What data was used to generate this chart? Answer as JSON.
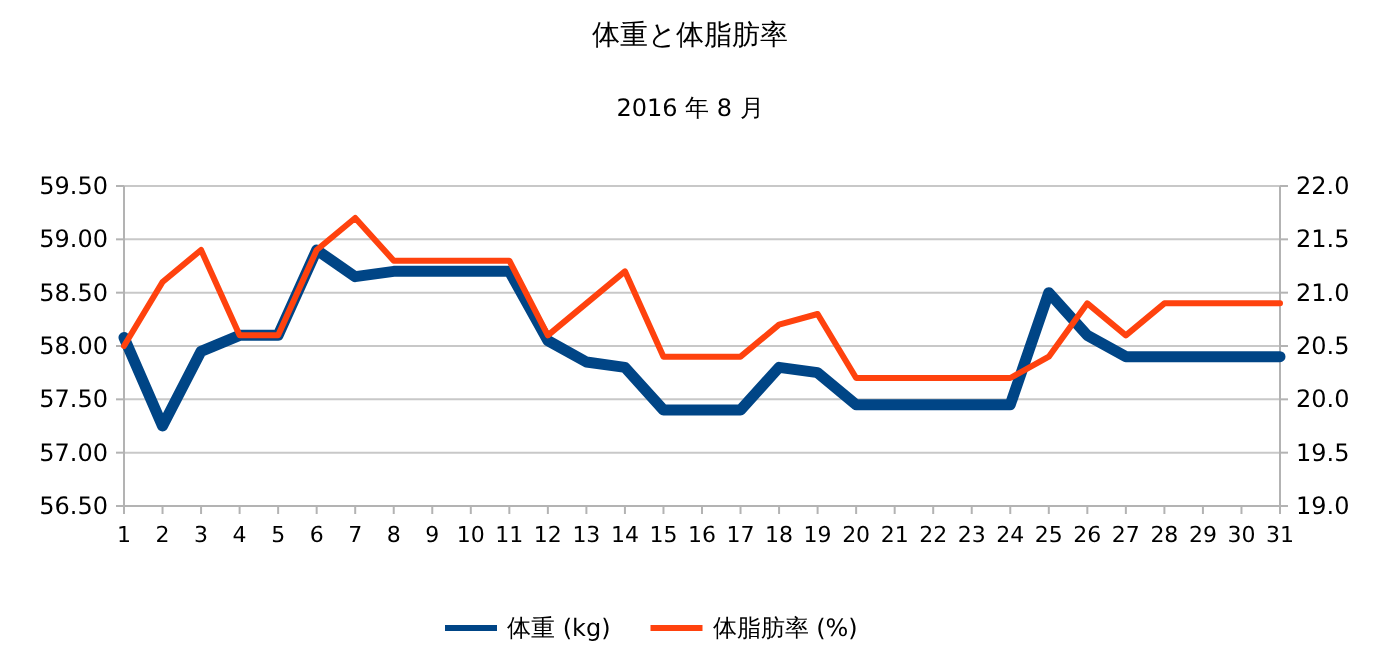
{
  "chart_data": {
    "type": "line",
    "title": "体重と体脂肪率",
    "subtitle": "2016 年 8 月",
    "x": [
      1,
      2,
      3,
      4,
      5,
      6,
      7,
      8,
      9,
      10,
      11,
      12,
      13,
      14,
      15,
      16,
      17,
      18,
      19,
      20,
      21,
      22,
      23,
      24,
      25,
      26,
      27,
      28,
      29,
      30,
      31
    ],
    "xlim": [
      1,
      31
    ],
    "xticks": [
      1,
      2,
      3,
      4,
      5,
      6,
      7,
      8,
      9,
      10,
      11,
      12,
      13,
      14,
      15,
      16,
      17,
      18,
      19,
      20,
      21,
      22,
      23,
      24,
      25,
      26,
      27,
      28,
      29,
      30,
      31
    ],
    "ylim": [
      56.5,
      59.5
    ],
    "yticks": [
      {
        "value": 56.5,
        "label": "56.50"
      },
      {
        "value": 57,
        "label": "57.00"
      },
      {
        "value": 57.5,
        "label": "57.50"
      },
      {
        "value": 58,
        "label": "58.00"
      },
      {
        "value": 58.5,
        "label": "58.50"
      },
      {
        "value": 59,
        "label": "59.00"
      },
      {
        "value": 59.5,
        "label": "59.50"
      }
    ],
    "y2lim": [
      19,
      22
    ],
    "y2ticks": [
      {
        "value": 19,
        "label": "19.0"
      },
      {
        "value": 19.5,
        "label": "19.5"
      },
      {
        "value": 20,
        "label": "20.0"
      },
      {
        "value": 20.5,
        "label": "20.5"
      },
      {
        "value": 21,
        "label": "21.0"
      },
      {
        "value": 21.5,
        "label": "21.5"
      },
      {
        "value": 22,
        "label": "22.0"
      }
    ],
    "series": [
      {
        "name": "体重 (kg)",
        "color": "#004586",
        "values": [
          58.08,
          57.25,
          57.95,
          58.1,
          58.1,
          58.9,
          58.65,
          58.7,
          58.7,
          58.7,
          58.7,
          58.05,
          57.85,
          57.8,
          57.4,
          57.4,
          57.4,
          57.8,
          57.75,
          57.45,
          57.45,
          57.45,
          57.45,
          57.45,
          58.5,
          58.1,
          57.9,
          57.9,
          57.9,
          57.9,
          57.9
        ]
      },
      {
        "name": "体脂肪率 (%)",
        "color": "#ff420e",
        "axis": "y2",
        "values": [
          20.5,
          21.1,
          21.4,
          20.6,
          20.6,
          21.4,
          21.7,
          21.3,
          21.3,
          21.3,
          21.3,
          20.6,
          20.9,
          21.2,
          20.4,
          20.4,
          20.4,
          20.7,
          20.8,
          20.2,
          20.2,
          20.2,
          20.2,
          20.2,
          20.4,
          20.9,
          20.6,
          20.9,
          20.9,
          20.9,
          20.9
        ]
      }
    ],
    "grid": "y",
    "legend": "bottom",
    "marker": "none",
    "line_style": "solid"
  }
}
